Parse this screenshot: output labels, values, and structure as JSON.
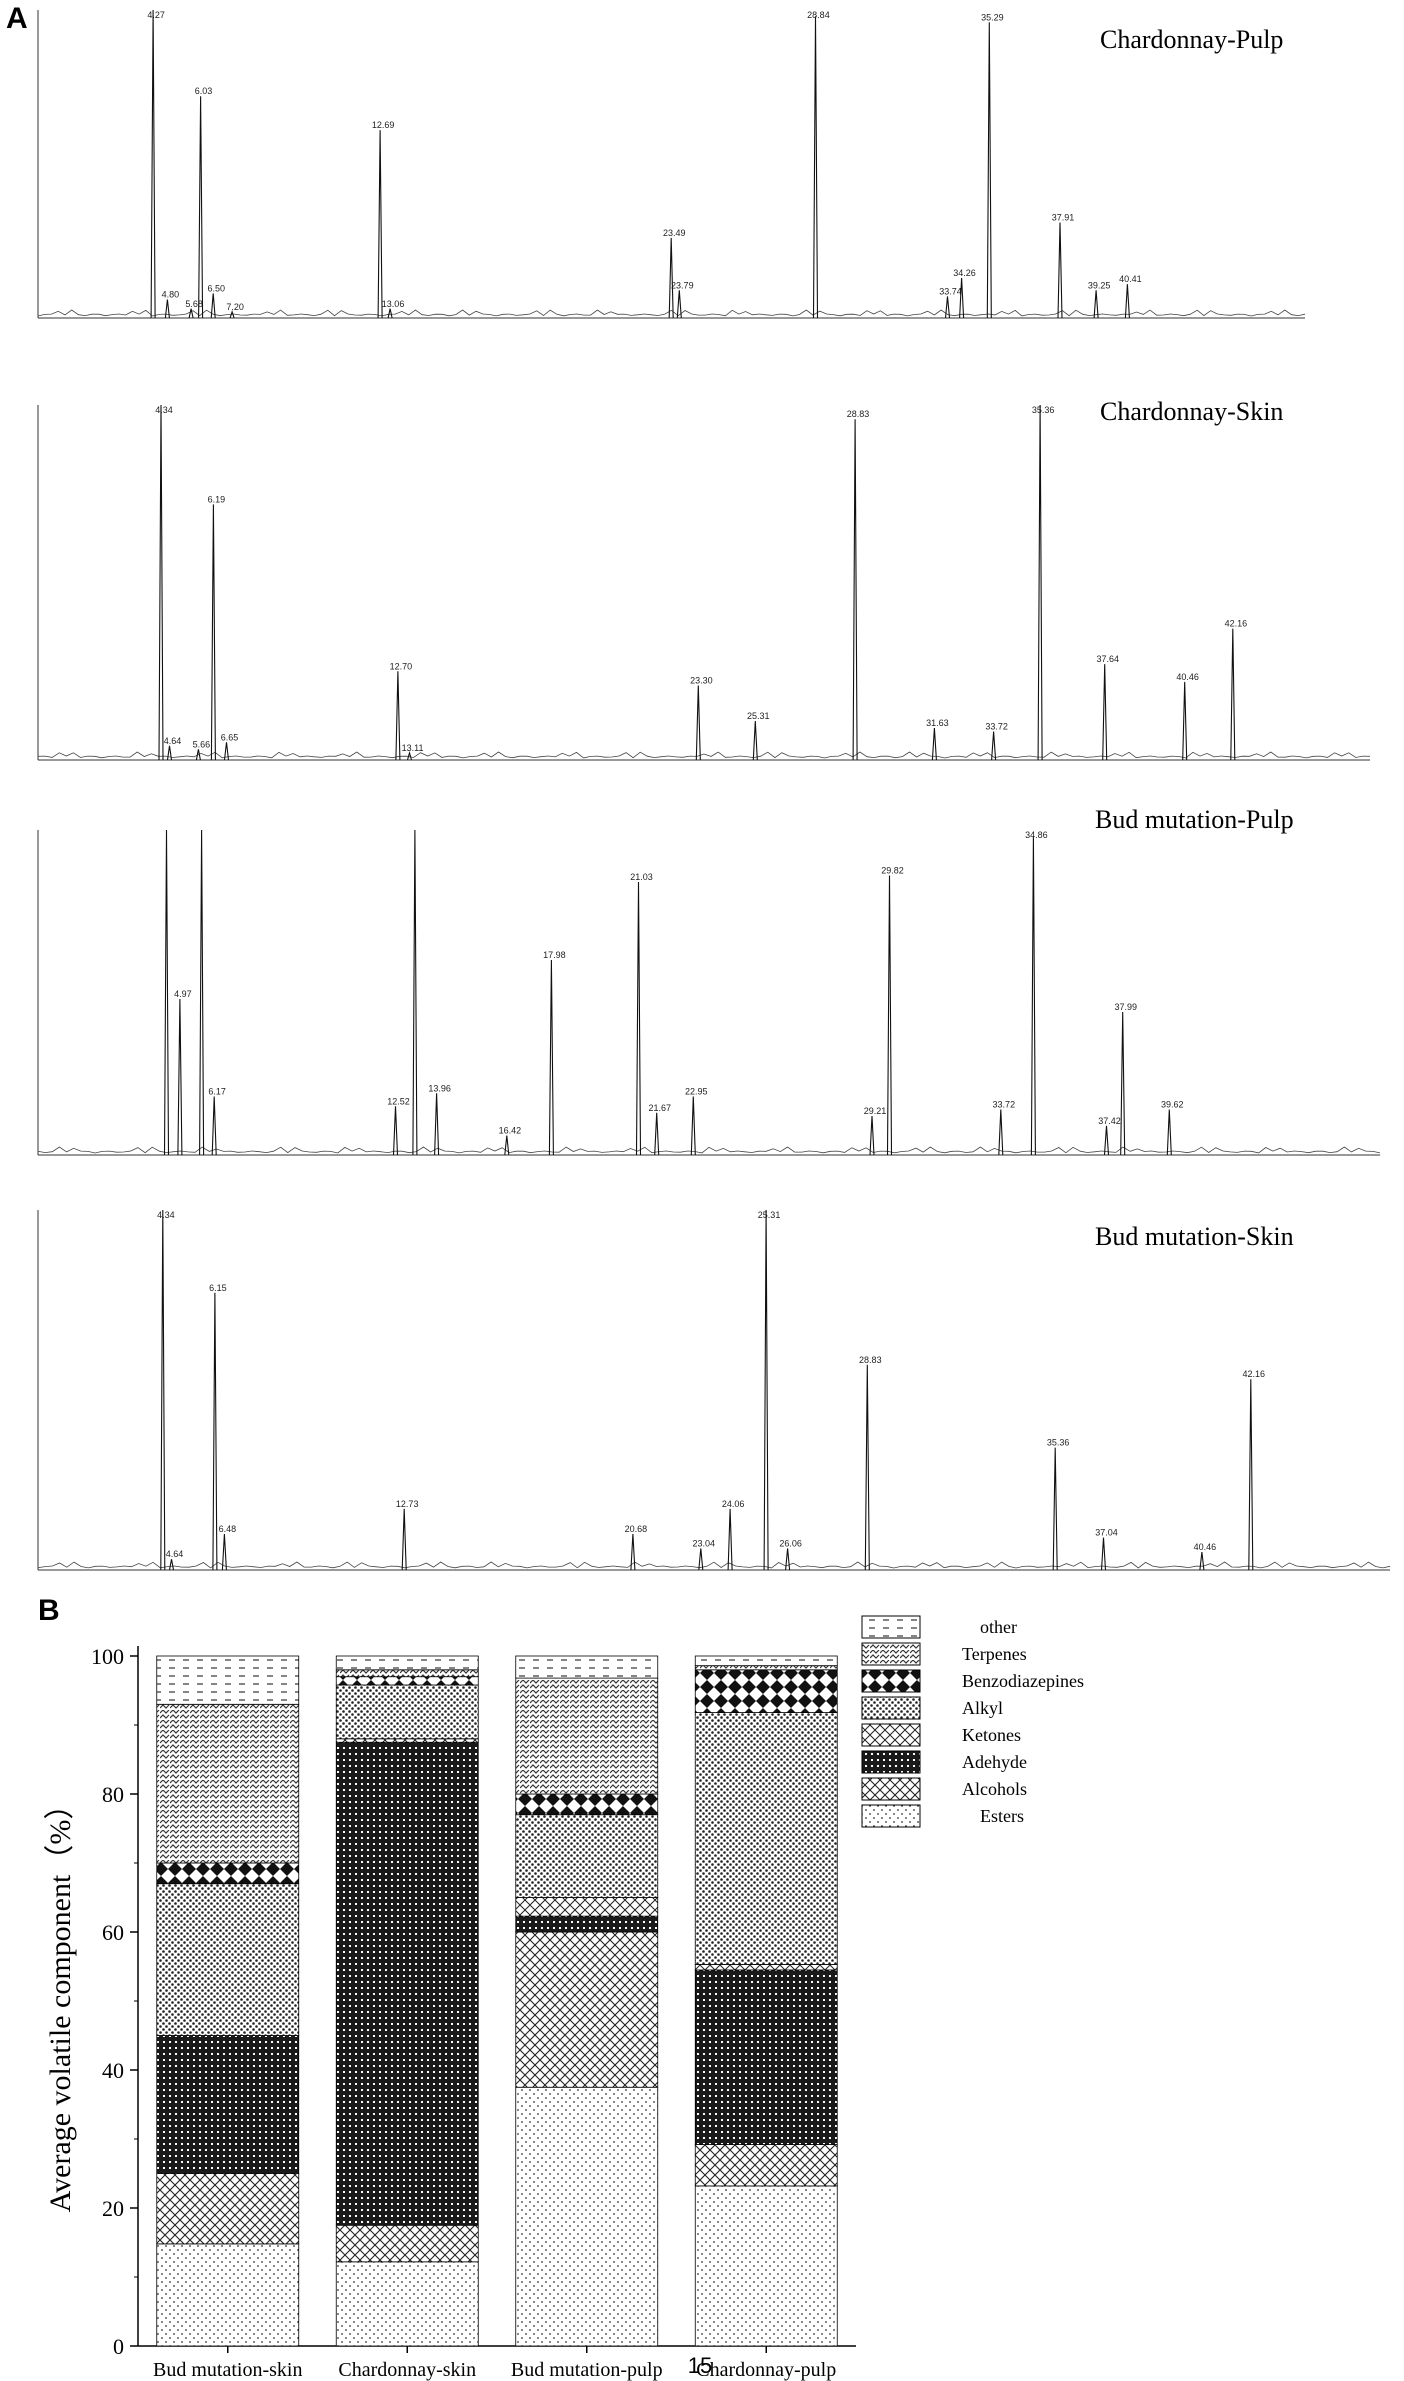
{
  "panel_a": {
    "letter": "A",
    "chromatograms": [
      {
        "title": "Chardonnay-Pulp",
        "peaks": [
          {
            "rt": 4.27,
            "h": 100,
            "label": "4.27"
          },
          {
            "rt": 4.8,
            "h": 6,
            "label": "4.80"
          },
          {
            "rt": 5.68,
            "h": 3,
            "label": "5.68"
          },
          {
            "rt": 6.03,
            "h": 72,
            "label": "6.03"
          },
          {
            "rt": 6.5,
            "h": 8,
            "label": "6.50"
          },
          {
            "rt": 7.2,
            "h": 2,
            "label": "7.20"
          },
          {
            "rt": 12.69,
            "h": 61,
            "label": "12.69"
          },
          {
            "rt": 13.06,
            "h": 3,
            "label": "13.06"
          },
          {
            "rt": 23.49,
            "h": 26,
            "label": "23.49"
          },
          {
            "rt": 23.79,
            "h": 9,
            "label": "23.79"
          },
          {
            "rt": 28.84,
            "h": 98,
            "label": "28.84"
          },
          {
            "rt": 33.74,
            "h": 7,
            "label": "33.74"
          },
          {
            "rt": 34.26,
            "h": 13,
            "label": "34.26"
          },
          {
            "rt": 35.29,
            "h": 96,
            "label": "35.29"
          },
          {
            "rt": 37.91,
            "h": 31,
            "label": "37.91"
          },
          {
            "rt": 39.25,
            "h": 9,
            "label": "39.25"
          },
          {
            "rt": 40.41,
            "h": 11,
            "label": "40.41"
          }
        ]
      },
      {
        "title": "Chardonnay-Skin",
        "peaks": [
          {
            "rt": 4.34,
            "h": 100,
            "label": "4.34"
          },
          {
            "rt": 4.64,
            "h": 4,
            "label": "4.64"
          },
          {
            "rt": 5.66,
            "h": 3,
            "label": "5.66"
          },
          {
            "rt": 6.19,
            "h": 72,
            "label": "6.19"
          },
          {
            "rt": 6.65,
            "h": 5,
            "label": "6.65"
          },
          {
            "rt": 12.7,
            "h": 25,
            "label": "12.70"
          },
          {
            "rt": 13.11,
            "h": 2,
            "label": "13.11"
          },
          {
            "rt": 23.3,
            "h": 21,
            "label": "23.30"
          },
          {
            "rt": 25.31,
            "h": 11,
            "label": "25.31"
          },
          {
            "rt": 28.83,
            "h": 96,
            "label": "28.83"
          },
          {
            "rt": 31.63,
            "h": 9,
            "label": "31.63"
          },
          {
            "rt": 33.72,
            "h": 8,
            "label": "33.72"
          },
          {
            "rt": 35.36,
            "h": 100,
            "label": "35.36"
          },
          {
            "rt": 37.64,
            "h": 27,
            "label": "37.64"
          },
          {
            "rt": 40.46,
            "h": 22,
            "label": "40.46"
          },
          {
            "rt": 42.16,
            "h": 37,
            "label": "42.16"
          }
        ]
      },
      {
        "title": "Bud mutation-Pulp",
        "peaks": [
          {
            "rt": 4.5,
            "h": 100,
            "label": ""
          },
          {
            "rt": 4.97,
            "h": 48,
            "label": "4.97"
          },
          {
            "rt": 5.73,
            "h": 100,
            "label": ""
          },
          {
            "rt": 6.17,
            "h": 18,
            "label": "6.17"
          },
          {
            "rt": 12.52,
            "h": 15,
            "label": "12.52"
          },
          {
            "rt": 13.2,
            "h": 100,
            "label": ""
          },
          {
            "rt": 13.96,
            "h": 19,
            "label": "13.96"
          },
          {
            "rt": 16.42,
            "h": 6,
            "label": "16.42"
          },
          {
            "rt": 17.98,
            "h": 60,
            "label": "17.98"
          },
          {
            "rt": 21.03,
            "h": 84,
            "label": "21.03"
          },
          {
            "rt": 21.67,
            "h": 13,
            "label": "21.67"
          },
          {
            "rt": 22.95,
            "h": 18,
            "label": "22.95"
          },
          {
            "rt": 29.21,
            "h": 12,
            "label": "29.21"
          },
          {
            "rt": 29.82,
            "h": 86,
            "label": "29.82"
          },
          {
            "rt": 33.72,
            "h": 14,
            "label": "33.72"
          },
          {
            "rt": 34.86,
            "h": 98,
            "label": "34.86"
          },
          {
            "rt": 37.42,
            "h": 9,
            "label": "37.42"
          },
          {
            "rt": 37.99,
            "h": 44,
            "label": "37.99"
          },
          {
            "rt": 39.62,
            "h": 14,
            "label": "39.62"
          }
        ]
      },
      {
        "title": "Bud mutation-Skin",
        "peaks": [
          {
            "rt": 4.34,
            "h": 100,
            "label": "4.34"
          },
          {
            "rt": 4.64,
            "h": 3,
            "label": "4.64"
          },
          {
            "rt": 6.15,
            "h": 77,
            "label": "6.15"
          },
          {
            "rt": 6.48,
            "h": 10,
            "label": "6.48"
          },
          {
            "rt": 12.73,
            "h": 17,
            "label": "12.73"
          },
          {
            "rt": 20.68,
            "h": 10,
            "label": "20.68"
          },
          {
            "rt": 23.04,
            "h": 6,
            "label": "23.04"
          },
          {
            "rt": 24.06,
            "h": 17,
            "label": "24.06"
          },
          {
            "rt": 25.31,
            "h": 100,
            "label": "25.31"
          },
          {
            "rt": 26.06,
            "h": 6,
            "label": "26.06"
          },
          {
            "rt": 28.83,
            "h": 57,
            "label": "28.83"
          },
          {
            "rt": 35.36,
            "h": 34,
            "label": "35.36"
          },
          {
            "rt": 37.04,
            "h": 9,
            "label": "37.04"
          },
          {
            "rt": 40.46,
            "h": 5,
            "label": "40.46"
          },
          {
            "rt": 42.16,
            "h": 53,
            "label": "42.16"
          }
        ]
      }
    ]
  },
  "chart_data": {
    "panel_letter": "B",
    "type": "bar",
    "stacked": true,
    "ylabel": "Average volatile component（%）",
    "ylim": [
      0,
      100
    ],
    "yticks": [
      "0",
      "20",
      "40",
      "60",
      "80",
      "100"
    ],
    "categories": [
      "Bud mutation-skin",
      "Chardonnay-skin",
      "Bud mutation-pulp",
      "Chardonnay-pulp"
    ],
    "series": [
      {
        "name": "Esters",
        "values": [
          14.8,
          12.2,
          37.5,
          23.2
        ]
      },
      {
        "name": "Alcohols",
        "values": [
          10.2,
          5.3,
          22.5,
          6.0
        ]
      },
      {
        "name": "Adehyde",
        "values": [
          20.0,
          70.0,
          2.3,
          25.3
        ]
      },
      {
        "name": "Ketones",
        "values": [
          0.0,
          0.5,
          2.7,
          0.8
        ]
      },
      {
        "name": "Alkyl",
        "values": [
          22.0,
          7.8,
          12.0,
          36.5
        ]
      },
      {
        "name": "Benzodiazepines",
        "values": [
          3.0,
          1.2,
          3.0,
          6.2
        ]
      },
      {
        "name": "Terpenes",
        "values": [
          23.0,
          1.0,
          16.8,
          0.6
        ]
      },
      {
        "name": "other",
        "values": [
          7.0,
          2.0,
          3.2,
          1.4
        ]
      }
    ],
    "legend_order": [
      "other",
      "Terpenes",
      "Benzodiazepines",
      "Alkyl",
      "Ketones",
      "Adehyde",
      "Alcohols",
      "Esters"
    ],
    "legend_position": "top-right",
    "grid": false
  },
  "page_number": "15"
}
